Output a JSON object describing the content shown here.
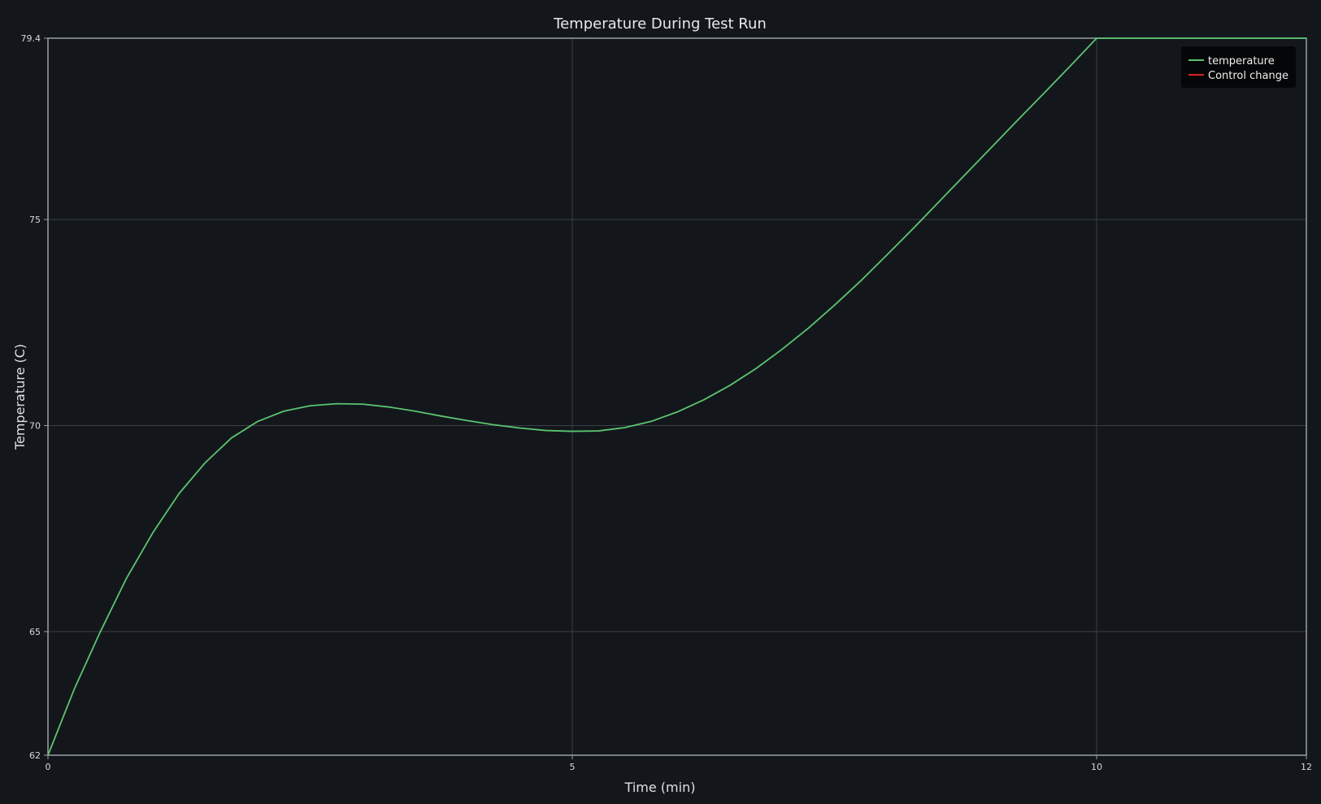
{
  "chart_data": {
    "type": "line",
    "title": "Temperature During Test Run",
    "xlabel": "Time (min)",
    "ylabel": "Temperature (C)",
    "xlim": [
      0,
      12
    ],
    "ylim": [
      62,
      79.4
    ],
    "xticks": [
      0,
      5,
      10,
      12
    ],
    "yticks": [
      62,
      65,
      70,
      75,
      79.4
    ],
    "grid": true,
    "legend_position": "top-right",
    "colors": {
      "background": "#13171c",
      "grid": "#3a3f46",
      "axis": "#9aa0a6",
      "temperature": "#5cc46e",
      "control_change": "#e02020"
    },
    "series": [
      {
        "name": "temperature",
        "x": [
          0,
          0.25,
          0.5,
          0.75,
          1,
          1.25,
          1.5,
          1.75,
          2,
          2.25,
          2.5,
          2.75,
          3,
          3.25,
          3.5,
          3.75,
          4,
          4.25,
          4.5,
          4.75,
          5,
          5.25,
          5.5,
          5.75,
          6,
          6.25,
          6.5,
          6.75,
          7,
          7.25,
          7.5,
          7.75,
          8,
          8.25,
          8.5,
          8.75,
          9,
          9.25,
          9.5,
          9.75,
          10,
          10.25,
          10.5,
          10.75,
          11,
          11.25,
          11.5,
          11.75,
          12
        ],
        "y": [
          62.0,
          63.6,
          65.0,
          66.3,
          67.4,
          68.35,
          69.1,
          69.7,
          70.1,
          70.35,
          70.48,
          70.53,
          70.52,
          70.45,
          70.35,
          70.23,
          70.12,
          70.02,
          69.94,
          69.88,
          69.86,
          69.87,
          69.95,
          70.1,
          70.33,
          70.62,
          70.97,
          71.38,
          71.85,
          72.36,
          72.92,
          73.51,
          74.14,
          74.78,
          75.44,
          76.1,
          76.76,
          77.42,
          78.07,
          78.73,
          79.4,
          79.4,
          79.4,
          79.4,
          79.4,
          79.4,
          79.4,
          79.4,
          79.4
        ]
      },
      {
        "name": "Control change",
        "x": [],
        "y": []
      }
    ]
  }
}
